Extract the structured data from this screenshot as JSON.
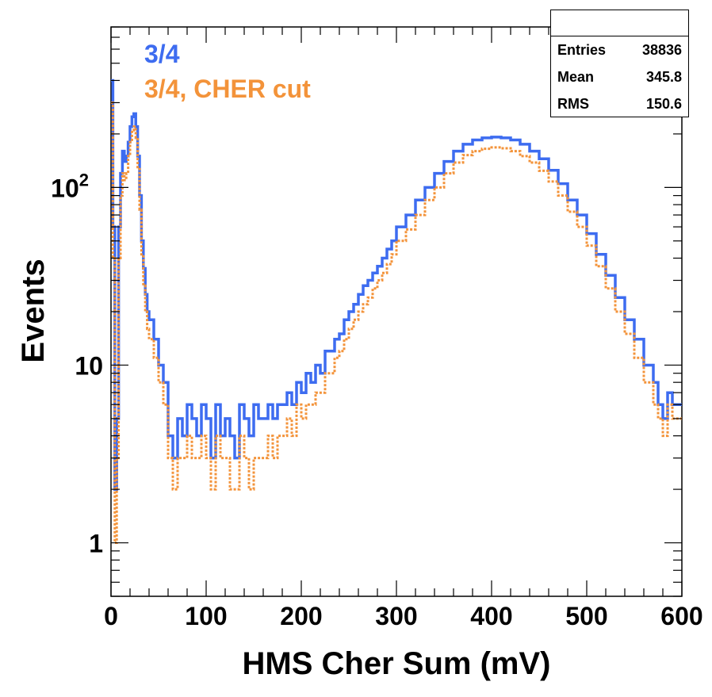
{
  "chart_data": {
    "type": "step-histogram",
    "xlabel": "HMS Cher Sum (mV)",
    "ylabel": "Events",
    "xlim": [
      0,
      600
    ],
    "ylim": [
      0.5,
      800
    ],
    "yscale": "log",
    "x_ticks": [
      "0",
      "100",
      "200",
      "300",
      "400",
      "500",
      "600"
    ],
    "y_ticks": [
      {
        "base": "1",
        "exp": ""
      },
      {
        "base": "10",
        "exp": ""
      },
      {
        "base": "10",
        "exp": "2"
      }
    ],
    "grid": false,
    "legend_position": "top-left",
    "stats": {
      "rows": [
        {
          "label": "Entries",
          "value": "38836"
        },
        {
          "label": "Mean",
          "value": "345.8"
        },
        {
          "label": "RMS",
          "value": "150.6"
        }
      ]
    },
    "series": [
      {
        "name": "3/4",
        "color": "#3d6cf0",
        "style": "solid",
        "x": [
          0,
          2,
          4,
          6,
          8,
          10,
          12,
          14,
          16,
          18,
          20,
          22,
          24,
          26,
          28,
          30,
          32,
          34,
          36,
          38,
          40,
          45,
          50,
          55,
          60,
          65,
          70,
          75,
          80,
          85,
          90,
          95,
          100,
          105,
          110,
          115,
          120,
          125,
          130,
          135,
          140,
          145,
          150,
          155,
          160,
          165,
          170,
          175,
          180,
          185,
          190,
          195,
          200,
          205,
          210,
          215,
          220,
          225,
          230,
          235,
          240,
          245,
          250,
          255,
          260,
          265,
          270,
          275,
          280,
          285,
          290,
          295,
          300,
          310,
          320,
          330,
          340,
          350,
          360,
          370,
          380,
          390,
          400,
          410,
          420,
          430,
          440,
          450,
          460,
          470,
          480,
          490,
          500,
          510,
          520,
          530,
          540,
          550,
          560,
          570,
          575,
          580,
          585,
          590,
          595,
          600
        ],
        "values": [
          400,
          60,
          2,
          5,
          60,
          120,
          160,
          140,
          150,
          180,
          220,
          250,
          260,
          220,
          150,
          90,
          50,
          35,
          25,
          20,
          18,
          14,
          10,
          8,
          4,
          3,
          5,
          4,
          6,
          5,
          4,
          6,
          5,
          3,
          6,
          4,
          5,
          4,
          3,
          6,
          5,
          4,
          6,
          5,
          5,
          6,
          5,
          6,
          6,
          7,
          6,
          8,
          7,
          9,
          8,
          10,
          9,
          12,
          12,
          14,
          15,
          18,
          20,
          22,
          25,
          28,
          30,
          33,
          36,
          40,
          45,
          50,
          60,
          70,
          85,
          100,
          120,
          140,
          160,
          175,
          185,
          190,
          192,
          190,
          185,
          175,
          160,
          145,
          125,
          105,
          85,
          70,
          55,
          42,
          32,
          24,
          18,
          14,
          10,
          8,
          6,
          5,
          7,
          6,
          6,
          7
        ]
      },
      {
        "name": "3/4, CHER cut",
        "color": "#f3933a",
        "style": "dotted",
        "x": [
          0,
          2,
          4,
          6,
          8,
          10,
          12,
          14,
          16,
          18,
          20,
          22,
          24,
          26,
          28,
          30,
          32,
          34,
          36,
          38,
          40,
          45,
          50,
          55,
          60,
          65,
          70,
          75,
          80,
          85,
          90,
          95,
          100,
          105,
          110,
          115,
          120,
          125,
          130,
          135,
          140,
          145,
          150,
          155,
          160,
          165,
          170,
          175,
          180,
          185,
          190,
          195,
          200,
          205,
          210,
          215,
          220,
          225,
          230,
          235,
          240,
          245,
          250,
          255,
          260,
          265,
          270,
          275,
          280,
          285,
          290,
          295,
          300,
          310,
          320,
          330,
          340,
          350,
          360,
          370,
          380,
          390,
          400,
          410,
          420,
          430,
          440,
          450,
          460,
          470,
          480,
          490,
          500,
          510,
          520,
          530,
          540,
          550,
          560,
          570,
          575,
          580,
          585,
          590,
          595,
          600
        ],
        "values": [
          300,
          40,
          1,
          3,
          40,
          90,
          120,
          110,
          120,
          150,
          180,
          210,
          220,
          190,
          130,
          75,
          42,
          28,
          20,
          16,
          14,
          11,
          8,
          6,
          3,
          2,
          3,
          3,
          4,
          3,
          3,
          4,
          3,
          2,
          4,
          3,
          3,
          2,
          2,
          4,
          3,
          2,
          3,
          3,
          3,
          4,
          3,
          4,
          4,
          5,
          4,
          6,
          5,
          6,
          6,
          7,
          7,
          9,
          9,
          11,
          12,
          14,
          16,
          18,
          20,
          22,
          24,
          27,
          30,
          33,
          37,
          42,
          50,
          58,
          70,
          85,
          100,
          120,
          138,
          152,
          160,
          165,
          168,
          166,
          160,
          150,
          138,
          124,
          108,
          90,
          73,
          60,
          47,
          36,
          27,
          20,
          15,
          11,
          8,
          6,
          5,
          4,
          6,
          5,
          5,
          6
        ]
      }
    ]
  }
}
